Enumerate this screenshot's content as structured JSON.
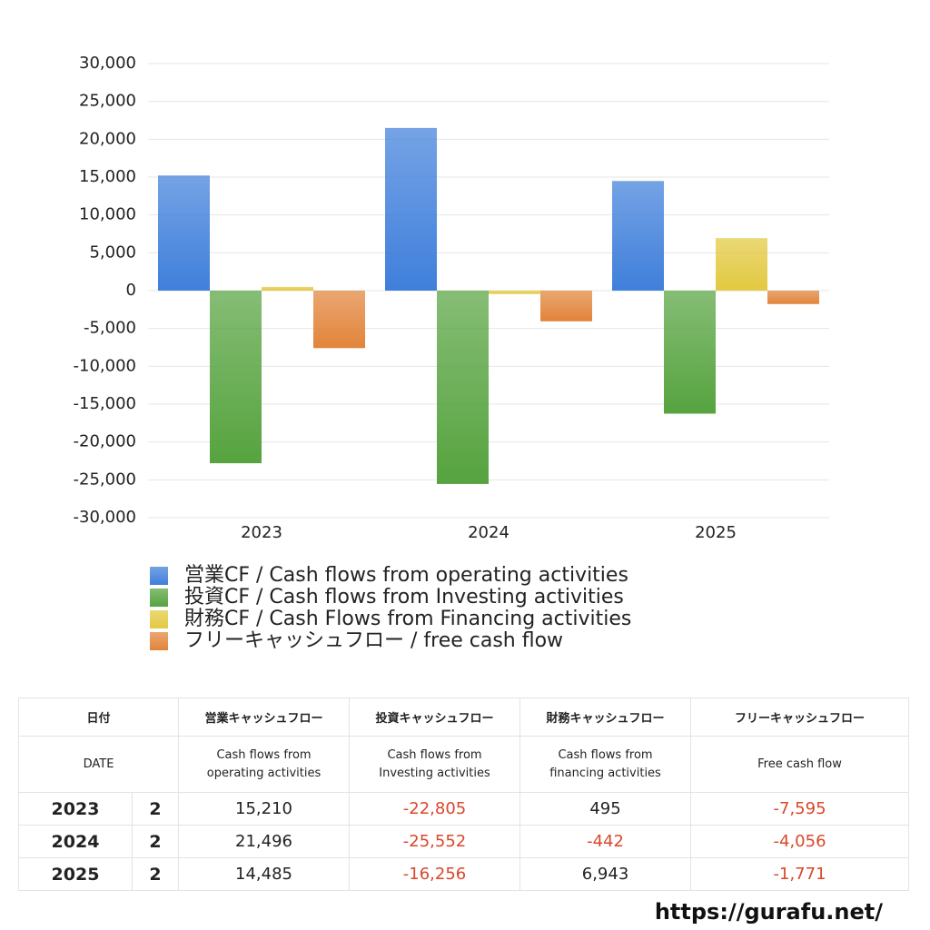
{
  "chart_data": {
    "type": "bar",
    "categories": [
      "2023",
      "2024",
      "2025"
    ],
    "series": [
      {
        "name": "営業CF / Cash flows from operating activities",
        "color": "#3f7fdb",
        "values": [
          15210,
          21496,
          14485
        ]
      },
      {
        "name": "投資CF / Cash flows from Investing activities",
        "color": "#56a33f",
        "values": [
          -22805,
          -25552,
          -16256
        ]
      },
      {
        "name": "財務CF / Cash Flows from Financing activities",
        "color": "#e2c940",
        "values": [
          495,
          -442,
          6943
        ]
      },
      {
        "name": "フリーキャッシュフロー / free cash flow",
        "color": "#e2843a",
        "values": [
          -7595,
          -4056,
          -1771
        ]
      }
    ],
    "ylim": [
      -30000,
      30000
    ],
    "yticks": [
      {
        "value": -30000,
        "label": "-30,000"
      },
      {
        "value": -25000,
        "label": "-25,000"
      },
      {
        "value": -20000,
        "label": "-20,000"
      },
      {
        "value": -15000,
        "label": "-15,000"
      },
      {
        "value": -10000,
        "label": "-10,000"
      },
      {
        "value": -5000,
        "label": "-5,000"
      },
      0,
      {
        "value": 5000,
        "label": "5,000"
      },
      {
        "value": 10000,
        "label": "10,000"
      },
      {
        "value": 15000,
        "label": "15,000"
      },
      {
        "value": 20000,
        "label": "20,000"
      },
      {
        "value": 25000,
        "label": "25,000"
      },
      {
        "value": 30000,
        "label": "30,000"
      }
    ],
    "grid": true
  },
  "table": {
    "header_ja": [
      "日付",
      "営業キャッシュフロー",
      "投資キャッシュフロー",
      "財務キャッシュフロー",
      "フリーキャッシュフロー"
    ],
    "header_en": [
      "DATE",
      "Cash flows from operating activities",
      "Cash flows from Investing activities",
      "Cash flows from financing activities",
      "Free cash flow"
    ],
    "rows": [
      [
        "2023",
        "2",
        "15,210",
        "-22,805",
        "495",
        "-7,595"
      ],
      [
        "2024",
        "2",
        "21,496",
        "-25,552",
        "-442",
        "-4,056"
      ],
      [
        "2025",
        "2",
        "14,485",
        "-16,256",
        "6,943",
        "-1,771"
      ]
    ],
    "negative_color": "#d9472b"
  },
  "footer": "https://gurafu.net/"
}
